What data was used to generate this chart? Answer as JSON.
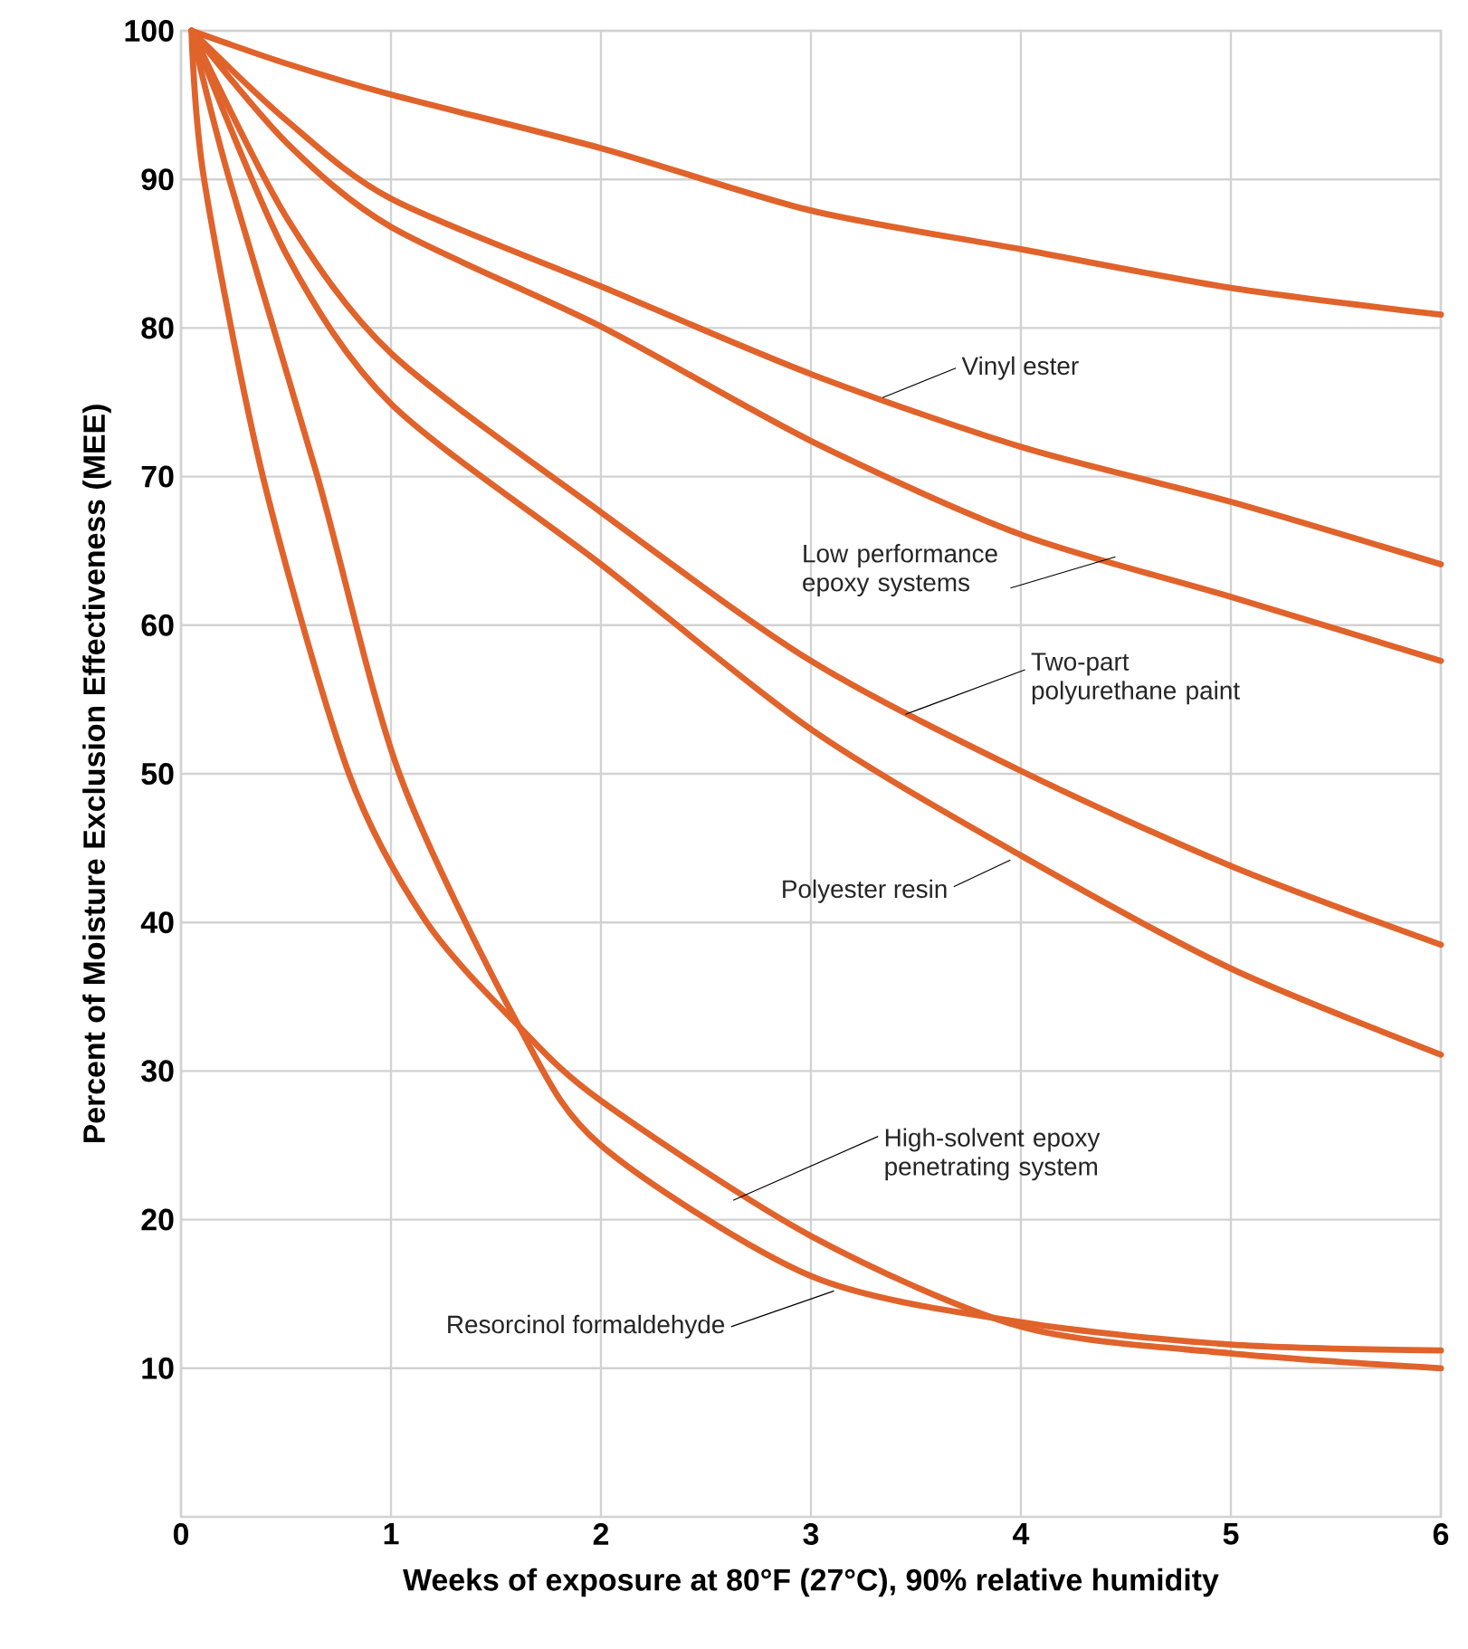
{
  "chart_data": {
    "type": "line",
    "xlabel": "Weeks of exposure at 80°F (27°C), 90% relative humidity",
    "ylabel": "Percent of Moisture Exclusion Effectiveness (MEE)",
    "xlim": [
      0,
      6
    ],
    "ylim": [
      0,
      100
    ],
    "xticks": [
      0,
      1,
      2,
      3,
      4,
      5,
      6
    ],
    "yticks": [
      10,
      20,
      30,
      40,
      50,
      60,
      70,
      80,
      90,
      100
    ],
    "grid": true,
    "marker": "none",
    "line_style": "solid",
    "series": [
      {
        "color": "#e0632b",
        "x": [
          0.05,
          0.5,
          1,
          2,
          3,
          4,
          5,
          6
        ],
        "values": [
          100,
          97.8,
          95.7,
          92.1,
          87.9,
          85.3,
          82.7,
          80.9
        ]
      },
      {
        "color": "#e0632b",
        "x": [
          0.05,
          0.5,
          1,
          2,
          3,
          4,
          5,
          6
        ],
        "values": [
          100,
          94,
          88.7,
          82.8,
          76.9,
          72,
          68.3,
          64.1
        ]
      },
      {
        "color": "#e0632b",
        "x": [
          0.05,
          0.5,
          1,
          2,
          3,
          4,
          5,
          6
        ],
        "values": [
          100,
          92.5,
          86.8,
          80.1,
          72.4,
          66.1,
          61.9,
          57.6
        ]
      },
      {
        "color": "#e0632b",
        "x": [
          0.05,
          0.5,
          1,
          2,
          3,
          4,
          5,
          6
        ],
        "values": [
          100,
          87.5,
          78.3,
          67.6,
          57.6,
          50.2,
          43.8,
          38.5
        ]
      },
      {
        "color": "#e0632b",
        "x": [
          0.05,
          0.5,
          1,
          2,
          3,
          4,
          5,
          6
        ],
        "values": [
          100,
          85,
          74.9,
          64.1,
          53,
          44.5,
          36.9,
          31.1
        ]
      },
      {
        "color": "#e0632b",
        "x": [
          0.05,
          0.11,
          0.39,
          0.8,
          1.17,
          1.61,
          2,
          3,
          4,
          5,
          6
        ],
        "values": [
          100,
          90,
          70,
          50,
          40,
          33,
          28,
          18.9,
          12.8,
          11,
          10
        ]
      },
      {
        "color": "#e0632b",
        "x": [
          0.05,
          0.23,
          0.65,
          1.04,
          1.61,
          2,
          3,
          4,
          5,
          6
        ],
        "values": [
          100,
          90,
          70,
          50,
          33,
          25,
          16.2,
          13.1,
          11.6,
          11.2
        ]
      }
    ],
    "annotations": [
      {
        "text": "Vinyl ester",
        "x": 3.34,
        "y": 75.3
      },
      {
        "text": "Low performance epoxy systems",
        "x": 4.45,
        "y": 64.6
      },
      {
        "text": "Two-part polyurethane paint",
        "x": 3.45,
        "y": 54
      },
      {
        "text": "Polyester resin",
        "x": 3.95,
        "y": 44.2
      },
      {
        "text": "High-solvent epoxy penetrating system",
        "x": 2.63,
        "y": 21.3
      },
      {
        "text": "Resorcinol formaldehyde",
        "x": 3.11,
        "y": 15.2
      }
    ]
  }
}
